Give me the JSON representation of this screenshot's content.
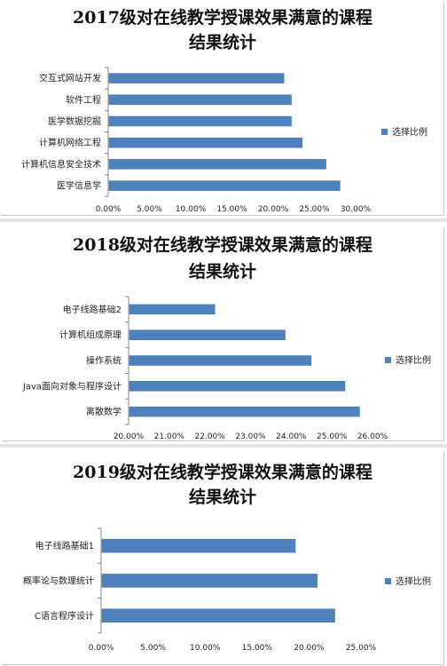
{
  "colors": {
    "bar": "#4f81bd",
    "bar_edge": "#3a6ea5",
    "axis": "#868686"
  },
  "chart_data": [
    {
      "type": "bar",
      "orientation": "horizontal",
      "title": [
        "2017级对在线教学授课效果满意的课程",
        "结果统计"
      ],
      "categories": [
        "交互式网站开发",
        "软件工程",
        "医学数据挖掘",
        "计算机网络工程",
        "计算机信息安全技术",
        "医学信息学"
      ],
      "values": [
        0.212,
        0.221,
        0.221,
        0.234,
        0.263,
        0.28
      ],
      "x_ticks": [
        "0.00%",
        "5.00%",
        "10.00%",
        "15.00%",
        "20.00%",
        "25.00%",
        "30.00%"
      ],
      "xlim": [
        0,
        0.3
      ],
      "legend": "选择比例",
      "legend_position": "right"
    },
    {
      "type": "bar",
      "orientation": "horizontal",
      "title": [
        "2018级对在线教学授课效果满意的课程",
        "结果统计"
      ],
      "categories": [
        "电子线路基础2",
        "计算机组成原理",
        "操作系统",
        "Java面向对象与程序设计",
        "离散数学"
      ],
      "values": [
        0.221,
        0.2383,
        0.2447,
        0.253,
        0.2566
      ],
      "x_ticks": [
        "20.00%",
        "21.00%",
        "22.00%",
        "23.00%",
        "24.00%",
        "25.00%",
        "26.00%"
      ],
      "xlim": [
        0.2,
        0.26
      ],
      "legend": "选择比例",
      "legend_position": "right"
    },
    {
      "type": "bar",
      "orientation": "horizontal",
      "title": [
        "2019级对在线教学授课效果满意的课程",
        "结果统计"
      ],
      "categories": [
        "电子线路基础1",
        "概率论与数理统计",
        "C语言程序设计"
      ],
      "values": [
        0.186,
        0.207,
        0.224
      ],
      "x_ticks": [
        "0.00%",
        "5.00%",
        "10.00%",
        "15.00%",
        "20.00%",
        "25.00%"
      ],
      "xlim": [
        0,
        0.25
      ],
      "legend": "选择比例",
      "legend_position": "right"
    }
  ]
}
